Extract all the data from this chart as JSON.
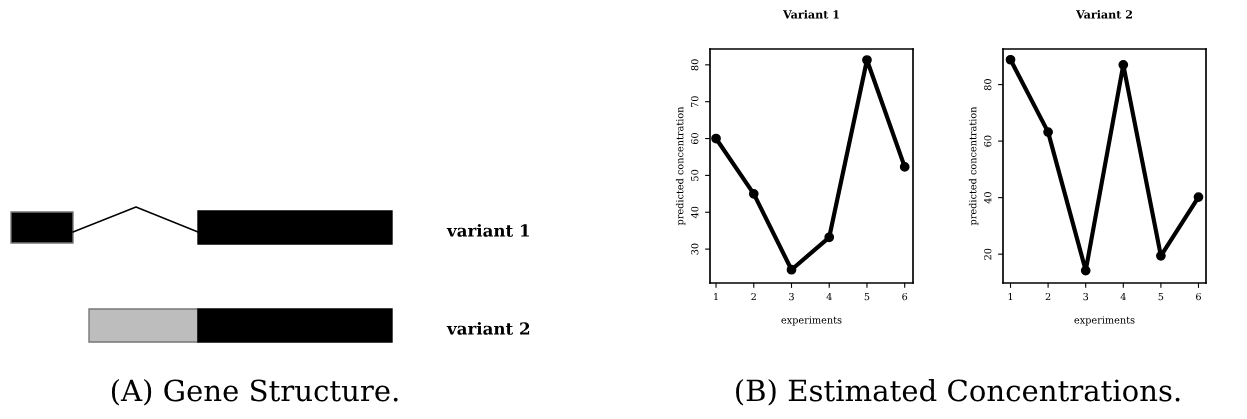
{
  "chart_data": [
    {
      "type": "other",
      "annotations": [
        "variant 1",
        "variant 2",
        "(A) Gene Structure."
      ]
    },
    {
      "type": "line",
      "title": "Variant 1",
      "xlabel": "experiments",
      "ylabel": "predicted concentration",
      "x": [
        1,
        2,
        3,
        4,
        5,
        6
      ],
      "series": [
        {
          "color": "#000000",
          "values": [
            60,
            45,
            24.4,
            33.2,
            81.3,
            52.3
          ]
        }
      ],
      "xlim": [
        0.84,
        6.22
      ],
      "ylim": [
        20.8,
        84.3
      ],
      "xticks": [
        1,
        2,
        3,
        4,
        5,
        6
      ],
      "yticks": [
        30,
        40,
        50,
        60,
        70,
        80
      ],
      "marker": "circle",
      "grid": false,
      "annotations": [
        "(B) Estimated Concentrations."
      ]
    },
    {
      "type": "line",
      "title": "Variant 2",
      "xlabel": "experiments",
      "ylabel": "predicted concentration",
      "x": [
        1,
        2,
        3,
        4,
        5,
        6
      ],
      "series": [
        {
          "color": "#000000",
          "values": [
            88.8,
            63.2,
            14.2,
            87,
            19.4,
            40.2
          ]
        }
      ],
      "xlim": [
        0.8,
        6.2
      ],
      "ylim": [
        9.8,
        92.6
      ],
      "xticks": [
        1,
        2,
        3,
        4,
        5,
        6
      ],
      "yticks": [
        20,
        40,
        60,
        80
      ],
      "marker": "circle",
      "grid": false
    }
  ]
}
